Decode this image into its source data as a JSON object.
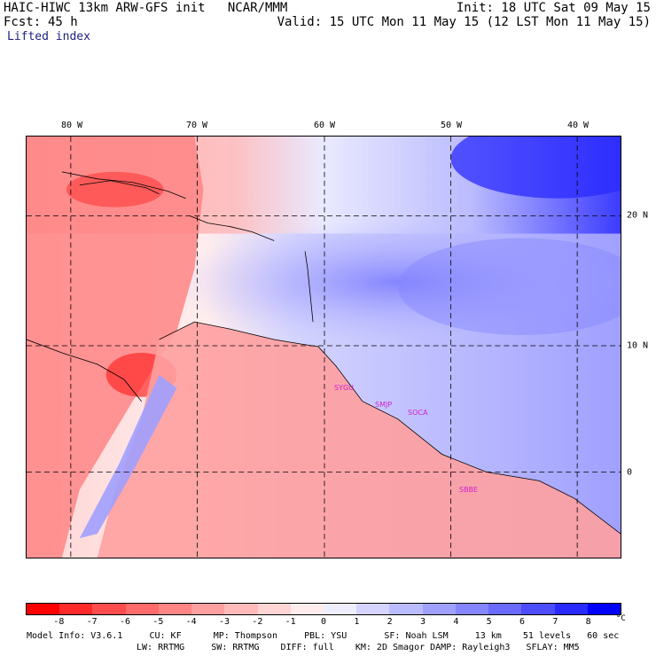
{
  "header": {
    "title": "HAIC-HIWC 13km ARW-GFS init   NCAR/MMM",
    "fcst_label": "Fcst:",
    "fcst_value": "45 h",
    "init": "Init: 18 UTC Sat 09 May 15",
    "valid": "Valid: 15 UTC Mon 11 May 15 (12 LST Mon 11 May 15)",
    "field": "Lifted index"
  },
  "map": {
    "lon_labels": [
      "80 W",
      "70 W",
      "60 W",
      "50 W",
      "40 W"
    ],
    "lat_labels": [
      "20 N",
      "10 N",
      "0"
    ],
    "stations": [
      "SYGU",
      "SMJP",
      "SOCA",
      "SBBE"
    ]
  },
  "colorbar": {
    "colors": [
      "#ff0000",
      "#ff2a2a",
      "#ff4d4d",
      "#ff6a6a",
      "#ff8585",
      "#ffa0a0",
      "#ffbaba",
      "#ffd4d4",
      "#ffeded",
      "#eeeeff",
      "#d4d4ff",
      "#bbbbff",
      "#a0a0ff",
      "#8585ff",
      "#6a6aff",
      "#4d4dff",
      "#2a2aff",
      "#0000ff"
    ],
    "ticks": [
      "-8",
      "-7",
      "-6",
      "-5",
      "-4",
      "-3",
      "-2",
      "-1",
      "0",
      "1",
      "2",
      "3",
      "4",
      "5",
      "6",
      "7",
      "8"
    ],
    "unit": "°C"
  },
  "model_info": {
    "line1": "Model Info: V3.6.1     CU: KF      MP: Thompson     PBL: YSU       SF: Noah LSM     13 km    51 levels   60 sec",
    "line2": "LW: RRTMG     SW: RRTMG    DIFF: full    KM: 2D Smagor DAMP: Rayleigh3   SFLAY: MM5"
  }
}
